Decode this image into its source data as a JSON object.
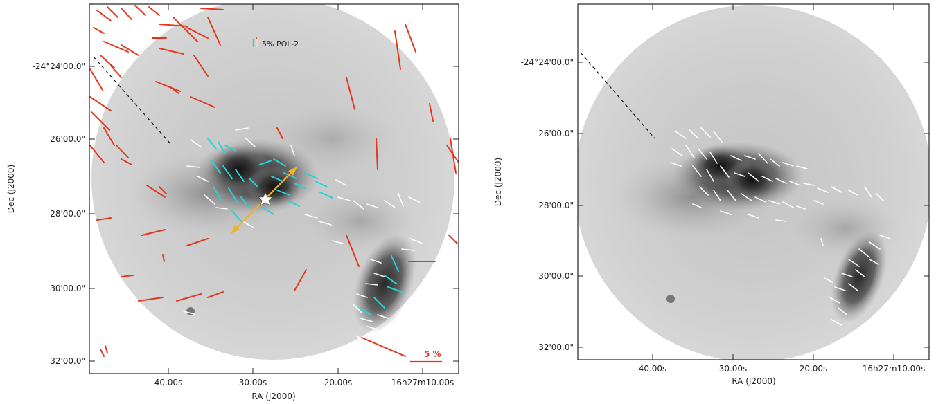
{
  "figure": {
    "panels": [
      {
        "xlabel": "RA (J2000)",
        "ylabel": "Dec (J2000)",
        "x_ticks": [
          "40.00s",
          "30.00s",
          "20.00s",
          "16h27m10.00s"
        ],
        "y_ticks": [
          "-24°24'00.0\"",
          "26'00.0\"",
          "28'00.0\"",
          "30'00.0\"",
          "32'00.0\""
        ],
        "legend_label": "5% POL-2",
        "scale_label": "5 %"
      },
      {
        "xlabel": "RA (J2000)",
        "ylabel": "Dec (J2000)",
        "x_ticks": [
          "40.00s",
          "30.00s",
          "20.00s",
          "16h27m10.00s"
        ],
        "y_ticks": [
          "-24°24'00.0\"",
          "26'00.0\"",
          "28'00.0\"",
          "30'00.0\"",
          "32'00.0\""
        ]
      }
    ],
    "colors": {
      "optical_vectors": "#e8341c",
      "pol2_vectors": "#22d3d8",
      "white_vectors": "#ffffff",
      "outflow_arrow": "#f0b323",
      "source_marker": "#ffffff"
    }
  }
}
